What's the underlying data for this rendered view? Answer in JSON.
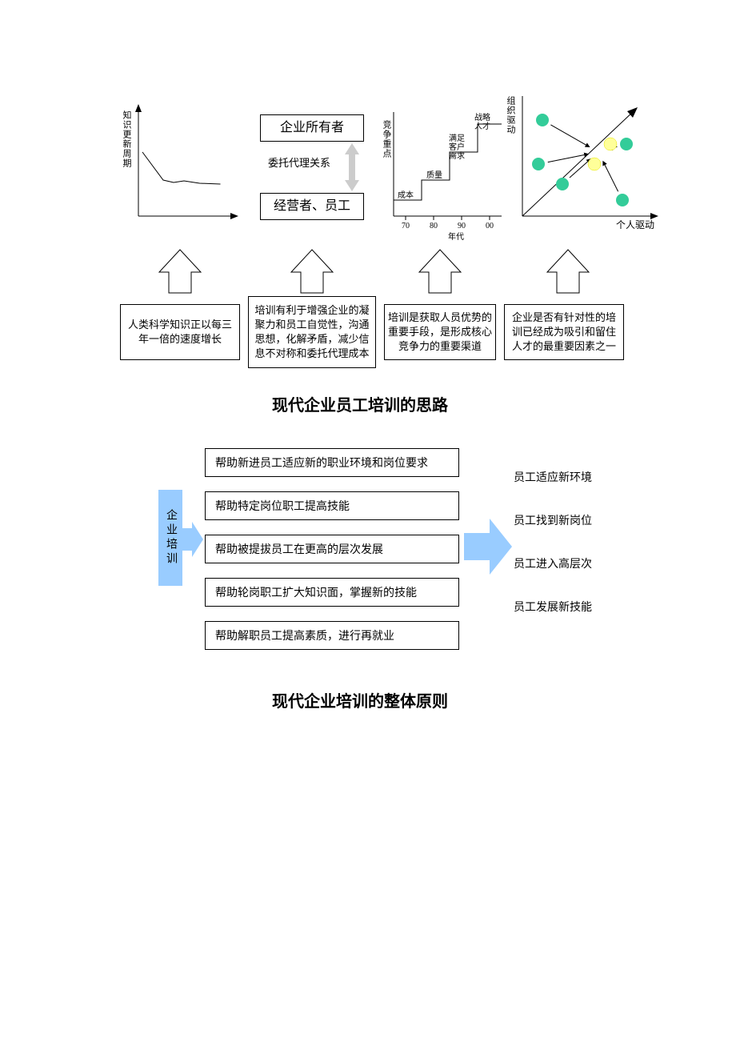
{
  "colors": {
    "black": "#000000",
    "green": "#33cc99",
    "yellow": "#ffff99",
    "lightblue": "#99ccff",
    "lightgray": "#d9d9d9",
    "arrowgray": "#cccccc"
  },
  "section1": {
    "chart1": {
      "ylabel": "知识更新周期",
      "line_points": [
        [
          0,
          40
        ],
        [
          20,
          75
        ],
        [
          30,
          78
        ],
        [
          40,
          76
        ],
        [
          55,
          79
        ],
        [
          75,
          80
        ]
      ]
    },
    "chart2": {
      "top_box": "企业所有者",
      "relation": "委托代理关系",
      "bottom_box": "经营者、员工"
    },
    "chart3": {
      "ylabel": "竞争重点",
      "xticks": [
        "70",
        "80",
        "90",
        "00"
      ],
      "xsublabel": "年代",
      "steps": [
        "成本",
        "质量",
        "满足客户需求",
        "战略人才"
      ]
    },
    "chart4": {
      "ylabel": "组织驱动",
      "xlabel": "个人驱动",
      "green_dots": [
        [
          30,
          30
        ],
        [
          25,
          85
        ],
        [
          55,
          110
        ],
        [
          135,
          60
        ],
        [
          130,
          130
        ]
      ],
      "yellow_dots": [
        [
          95,
          85
        ],
        [
          115,
          60
        ]
      ]
    },
    "captions": [
      "人类科学知识正以每三年一倍的速度增长",
      "培训有利于增强企业的凝聚力和员工自觉性，沟通思想，化解矛盾，减少信息不对称和委托代理成本",
      "培训是获取人员优势的重要手段，是形成核心竞争力的重要渠道",
      "企业是否有针对性的培训已经成为吸引和留住人才的最重要因素之一"
    ],
    "title": "现代企业员工培训的思路"
  },
  "section2": {
    "left_label": "企业培训",
    "middle": [
      "帮助新进员工适应新的职业环境和岗位要求",
      "帮助特定岗位职工提高技能",
      "帮助被提拔员工在更高的层次发展",
      "帮助轮岗职工扩大知识面，掌握新的技能",
      "帮助解职员工提高素质，进行再就业"
    ],
    "right": [
      "员工适应新环境",
      "员工找到新岗位",
      "员工进入高层次",
      "员工发展新技能"
    ],
    "title": "现代企业培训的整体原则"
  }
}
